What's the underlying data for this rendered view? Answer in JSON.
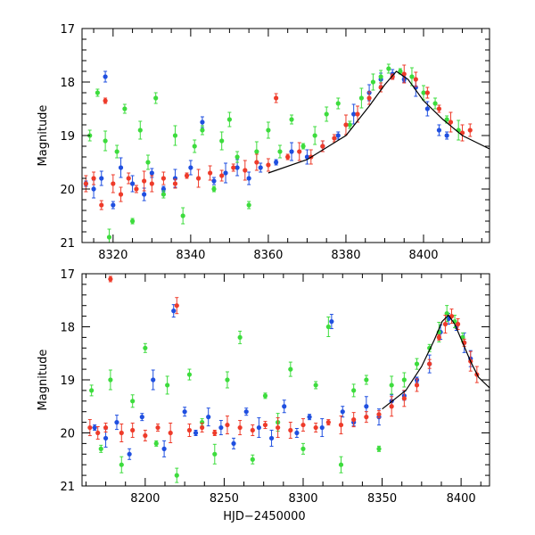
{
  "chart_data": [
    {
      "type": "scatter",
      "title": "",
      "xlabel": "",
      "ylabel": "Magnitude",
      "xlim": [
        8312,
        8417
      ],
      "ylim": [
        21,
        17
      ],
      "y_inverted": true,
      "xticks": [
        8320,
        8340,
        8360,
        8380,
        8400
      ],
      "yticks": [
        17,
        18,
        19,
        20,
        21
      ],
      "grid": false,
      "legend": "none",
      "error_bars": true,
      "colors": {
        "red": "#ee3b2a",
        "green": "#3ddc3d",
        "blue": "#1f4fe0",
        "model": "#000000"
      },
      "model_curve": {
        "x": [
          8360,
          8370,
          8380,
          8386,
          8390,
          8393,
          8396,
          8400,
          8405,
          8410,
          8417
        ],
        "y": [
          19.7,
          19.45,
          19.0,
          18.45,
          18.05,
          17.8,
          17.95,
          18.35,
          18.7,
          19.0,
          19.25
        ]
      },
      "series": [
        {
          "color": "blue",
          "x": [
            8313,
            8315,
            8317,
            8318,
            8320,
            8322,
            8325,
            8328,
            8330,
            8333,
            8336,
            8340,
            8343,
            8346,
            8349,
            8352,
            8355,
            8358,
            8362,
            8366,
            8370,
            8374,
            8378,
            8382,
            8386,
            8389,
            8392,
            8395,
            8398,
            8401,
            8404,
            8406
          ],
          "y": [
            19.9,
            20.0,
            19.8,
            17.9,
            20.3,
            19.6,
            19.9,
            20.1,
            19.7,
            20.0,
            19.8,
            19.6,
            18.75,
            19.85,
            19.7,
            19.6,
            19.8,
            19.6,
            19.5,
            19.3,
            19.4,
            19.2,
            19.0,
            18.6,
            18.2,
            17.95,
            17.85,
            17.95,
            18.1,
            18.5,
            18.9,
            19.0
          ]
        },
        {
          "color": "green",
          "x": [
            8314,
            8316,
            8318,
            8319,
            8321,
            8323,
            8325,
            8327,
            8329,
            8331,
            8333,
            8336,
            8338,
            8341,
            8343,
            8346,
            8348,
            8350,
            8352,
            8355,
            8357,
            8360,
            8363,
            8366,
            8369,
            8372,
            8375,
            8378,
            8381,
            8384,
            8387,
            8389,
            8391,
            8394,
            8397,
            8400,
            8403,
            8406,
            8409
          ],
          "y": [
            19.0,
            18.2,
            19.1,
            20.9,
            19.3,
            18.5,
            20.6,
            18.9,
            19.5,
            18.3,
            20.1,
            19.0,
            20.5,
            19.2,
            18.9,
            20.0,
            19.1,
            18.7,
            19.4,
            20.3,
            19.3,
            18.9,
            19.3,
            18.7,
            19.2,
            19.0,
            18.6,
            18.4,
            18.8,
            18.3,
            18.0,
            17.9,
            17.75,
            17.8,
            17.9,
            18.2,
            18.4,
            18.7,
            18.9
          ]
        },
        {
          "color": "red",
          "x": [
            8313,
            8315,
            8317,
            8318,
            8320,
            8322,
            8324,
            8326,
            8328,
            8330,
            8333,
            8336,
            8339,
            8342,
            8345,
            8348,
            8351,
            8354,
            8357,
            8360,
            8362,
            8365,
            8368,
            8371,
            8374,
            8377,
            8380,
            8383,
            8386,
            8389,
            8392,
            8395,
            8398,
            8401,
            8404,
            8407,
            8410,
            8412
          ],
          "y": [
            19.9,
            19.8,
            20.3,
            18.35,
            19.9,
            20.1,
            19.8,
            20.0,
            19.85,
            19.9,
            19.8,
            19.9,
            19.75,
            19.8,
            19.7,
            19.75,
            19.6,
            19.65,
            19.5,
            19.55,
            18.3,
            19.4,
            19.3,
            19.4,
            19.2,
            19.05,
            18.8,
            18.6,
            18.3,
            18.1,
            17.9,
            17.85,
            17.95,
            18.2,
            18.5,
            18.75,
            18.95,
            18.9
          ]
        }
      ]
    },
    {
      "type": "scatter",
      "title": "",
      "xlabel": "HJD−2450000",
      "ylabel": "Magnitude",
      "xlim": [
        8160,
        8418
      ],
      "ylim": [
        21,
        17
      ],
      "y_inverted": true,
      "xticks": [
        8200,
        8250,
        8300,
        8350,
        8400
      ],
      "yticks": [
        17,
        18,
        19,
        20,
        21
      ],
      "grid": false,
      "legend": "none",
      "error_bars": true,
      "colors": {
        "red": "#ee3b2a",
        "green": "#3ddc3d",
        "blue": "#1f4fe0",
        "model": "#000000"
      },
      "model_curve": {
        "x": [
          8350,
          8365,
          8375,
          8383,
          8388,
          8392,
          8396,
          8401,
          8406,
          8411,
          8418
        ],
        "y": [
          19.55,
          19.2,
          18.75,
          18.25,
          17.9,
          17.78,
          17.95,
          18.3,
          18.65,
          18.95,
          19.15
        ]
      },
      "series": [
        {
          "color": "blue",
          "x": [
            8168,
            8175,
            8182,
            8190,
            8198,
            8205,
            8212,
            8218,
            8225,
            8232,
            8240,
            8248,
            8256,
            8264,
            8272,
            8280,
            8288,
            8296,
            8304,
            8312,
            8318,
            8325,
            8332,
            8340,
            8348,
            8356,
            8364,
            8372,
            8380,
            8387,
            8392,
            8397,
            8402,
            8406
          ],
          "y": [
            19.9,
            20.1,
            19.8,
            20.4,
            19.7,
            19.0,
            20.3,
            17.7,
            19.6,
            20.0,
            19.7,
            19.9,
            20.2,
            19.6,
            19.9,
            20.1,
            19.5,
            20.0,
            19.7,
            19.9,
            17.9,
            19.6,
            19.8,
            19.5,
            19.7,
            19.4,
            19.3,
            19.0,
            18.7,
            18.1,
            17.85,
            18.0,
            18.3,
            18.6
          ]
        },
        {
          "color": "green",
          "x": [
            8166,
            8172,
            8178,
            8185,
            8192,
            8200,
            8207,
            8214,
            8220,
            8228,
            8236,
            8244,
            8252,
            8260,
            8268,
            8276,
            8284,
            8292,
            8300,
            8308,
            8316,
            8324,
            8332,
            8340,
            8348,
            8356,
            8364,
            8372,
            8380,
            8386,
            8391,
            8396,
            8401
          ],
          "y": [
            19.2,
            20.3,
            19.0,
            20.6,
            19.4,
            18.4,
            20.2,
            19.1,
            20.8,
            18.9,
            19.8,
            20.4,
            19.0,
            18.2,
            20.5,
            19.3,
            19.8,
            18.8,
            20.3,
            19.1,
            18.0,
            20.6,
            19.2,
            19.0,
            20.3,
            19.1,
            19.0,
            18.7,
            18.4,
            18.1,
            17.75,
            17.9,
            18.2
          ]
        },
        {
          "color": "red",
          "x": [
            8165,
            8170,
            8175,
            8178,
            8185,
            8192,
            8200,
            8208,
            8216,
            8220,
            8228,
            8236,
            8244,
            8252,
            8260,
            8268,
            8276,
            8284,
            8292,
            8300,
            8308,
            8316,
            8324,
            8332,
            8340,
            8348,
            8356,
            8364,
            8372,
            8380,
            8386,
            8390,
            8394,
            8398,
            8402,
            8406,
            8410
          ],
          "y": [
            19.9,
            20.0,
            19.9,
            17.1,
            20.0,
            19.95,
            20.05,
            19.9,
            20.0,
            17.6,
            19.95,
            19.9,
            20.0,
            19.85,
            19.9,
            19.95,
            19.85,
            19.9,
            19.95,
            19.85,
            19.9,
            19.8,
            19.85,
            19.75,
            19.7,
            19.65,
            19.5,
            19.35,
            19.1,
            18.7,
            18.2,
            17.95,
            17.8,
            17.95,
            18.3,
            18.65,
            18.9
          ]
        }
      ]
    }
  ]
}
